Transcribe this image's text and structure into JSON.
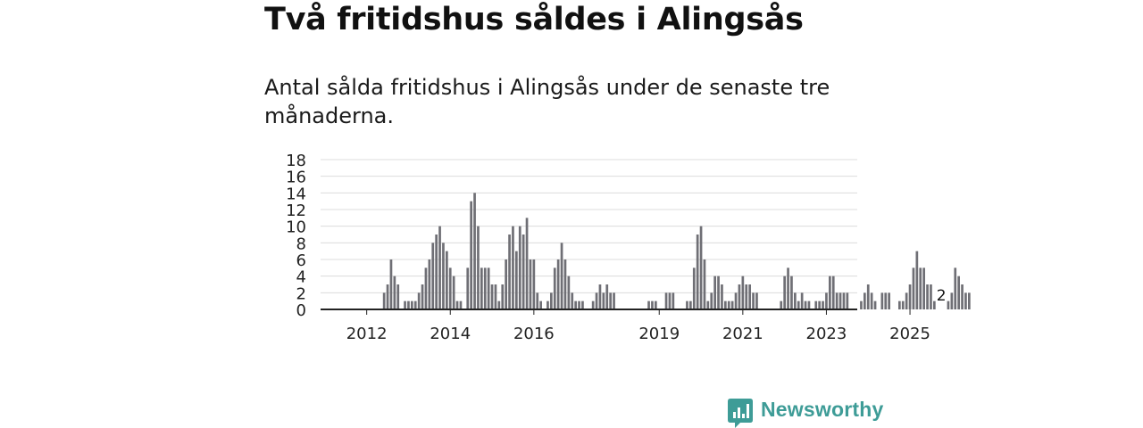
{
  "headline": "Två fritidshus såldes i Alingsås",
  "subtitle": "Antal sålda fritidshus i Alingsås under de senaste tre månaderna.",
  "brand": {
    "name": "Newsworthy",
    "icon": "newsworthy-logo-icon"
  },
  "colors": {
    "bar": "#6f6f75",
    "highlight": "#2ab3b0",
    "grid": "#dcdcdc",
    "axis": "#222222",
    "brand": "#3e9c97"
  },
  "chart_data": {
    "type": "bar",
    "x_start": "2011-01",
    "x_step": "1 month",
    "ylim": [
      0,
      18
    ],
    "y_ticks": [
      "0",
      "2",
      "4",
      "6",
      "8",
      "10",
      "12",
      "14",
      "16",
      "18"
    ],
    "x_ticks": [
      {
        "label": "2012",
        "at": "2012-01"
      },
      {
        "label": "2014",
        "at": "2014-01"
      },
      {
        "label": "2016",
        "at": "2016-01"
      },
      {
        "label": "2019",
        "at": "2019-01"
      },
      {
        "label": "2021",
        "at": "2021-01"
      },
      {
        "label": "2023",
        "at": "2023-01"
      },
      {
        "label": "2025",
        "at": "2025-01"
      }
    ],
    "values": [
      0,
      0,
      0,
      0,
      0,
      0,
      0,
      0,
      0,
      0,
      0,
      0,
      0,
      0,
      0,
      0,
      0,
      2,
      3,
      6,
      4,
      3,
      0,
      1,
      1,
      1,
      1,
      2,
      3,
      5,
      6,
      8,
      9,
      10,
      8,
      7,
      5,
      4,
      1,
      1,
      0,
      5,
      13,
      14,
      10,
      5,
      5,
      5,
      3,
      3,
      1,
      3,
      6,
      9,
      10,
      7,
      10,
      9,
      11,
      6,
      6,
      2,
      1,
      0,
      1,
      2,
      5,
      6,
      8,
      6,
      4,
      2,
      1,
      1,
      1,
      0,
      0,
      1,
      2,
      3,
      2,
      3,
      2,
      2,
      0,
      0,
      0,
      0,
      0,
      0,
      0,
      0,
      0,
      1,
      1,
      1,
      0,
      0,
      2,
      2,
      2,
      0,
      0,
      0,
      1,
      1,
      5,
      9,
      10,
      6,
      1,
      2,
      4,
      4,
      3,
      1,
      1,
      1,
      2,
      3,
      4,
      3,
      3,
      2,
      2,
      0,
      0,
      0,
      0,
      0,
      0,
      1,
      4,
      5,
      4,
      2,
      1,
      2,
      1,
      1,
      0,
      1,
      1,
      1,
      2,
      4,
      4,
      2,
      2,
      2,
      2,
      0,
      0,
      0,
      1,
      2,
      3,
      2,
      1,
      0,
      2,
      2,
      2,
      0,
      0,
      1,
      1,
      2,
      3,
      5,
      7,
      5,
      5,
      3,
      3,
      1,
      0,
      0,
      0,
      1,
      2,
      5,
      4,
      3,
      2,
      2
    ],
    "highlight_index": 177,
    "annotation": "2"
  }
}
